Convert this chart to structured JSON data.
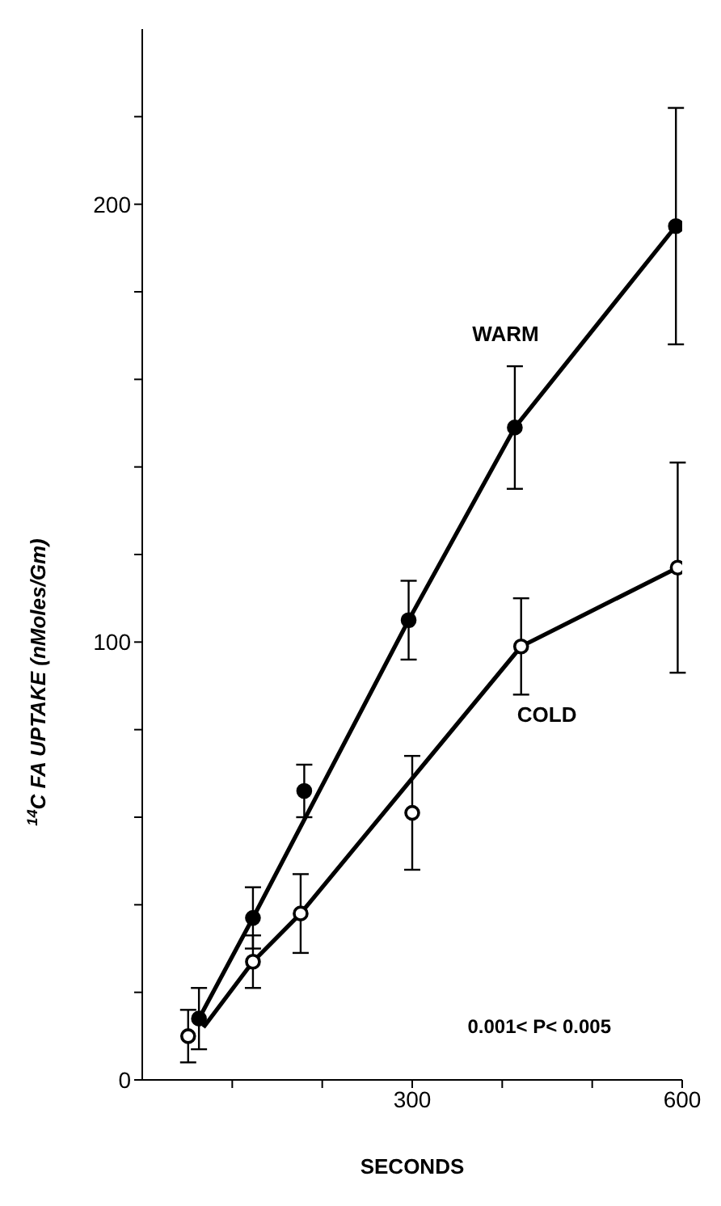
{
  "chart_data": {
    "type": "scatter",
    "xlabel": "SECONDS",
    "ylabel": "$^{14}$C FA UPTAKE (nMoles/Gm)",
    "annotations": [
      "0.001< P< 0.005"
    ],
    "xlim": [
      0,
      600
    ],
    "ylim": [
      0,
      240
    ],
    "xticks": [
      {
        "value": 100,
        "label": null
      },
      {
        "value": 200,
        "label": null
      },
      300,
      {
        "value": 400,
        "label": null
      },
      {
        "value": 500,
        "label": null
      },
      600
    ],
    "yticks": [
      0,
      {
        "value": 20,
        "label": null
      },
      {
        "value": 40,
        "label": null
      },
      {
        "value": 60,
        "label": null
      },
      {
        "value": 80,
        "label": null
      },
      100,
      {
        "value": 120,
        "label": null
      },
      {
        "value": 140,
        "label": null
      },
      {
        "value": 160,
        "label": null
      },
      {
        "value": 180,
        "label": null
      },
      200,
      {
        "value": 220,
        "label": null
      }
    ],
    "grid": false,
    "legend": false,
    "marker": "circle",
    "series": [
      {
        "color": "#000000",
        "x": [
          63,
          123,
          180,
          296,
          414,
          593
        ],
        "values": [
          14,
          37,
          66,
          105,
          149,
          195
        ],
        "errors": [
          7,
          7,
          6,
          9,
          14,
          27
        ]
      },
      {
        "color": "#000000",
        "x": [
          51,
          123,
          176,
          300,
          421,
          595
        ],
        "values": [
          10,
          27,
          38,
          61,
          99,
          117
        ],
        "errors": [
          6,
          6,
          9,
          13,
          11,
          24
        ]
      },
      {
        "type": "line",
        "name": "WARM",
        "color": "#000000",
        "marker": "none",
        "x": [
          63,
          123,
          296,
          414,
          593
        ],
        "values": [
          14,
          37,
          105,
          149,
          195
        ]
      },
      {
        "type": "line",
        "name": "COLD",
        "color": "#000000",
        "marker": "none",
        "x": [
          68,
          123,
          176,
          421,
          595
        ],
        "values": [
          12,
          27,
          38,
          99,
          117
        ]
      }
    ]
  }
}
